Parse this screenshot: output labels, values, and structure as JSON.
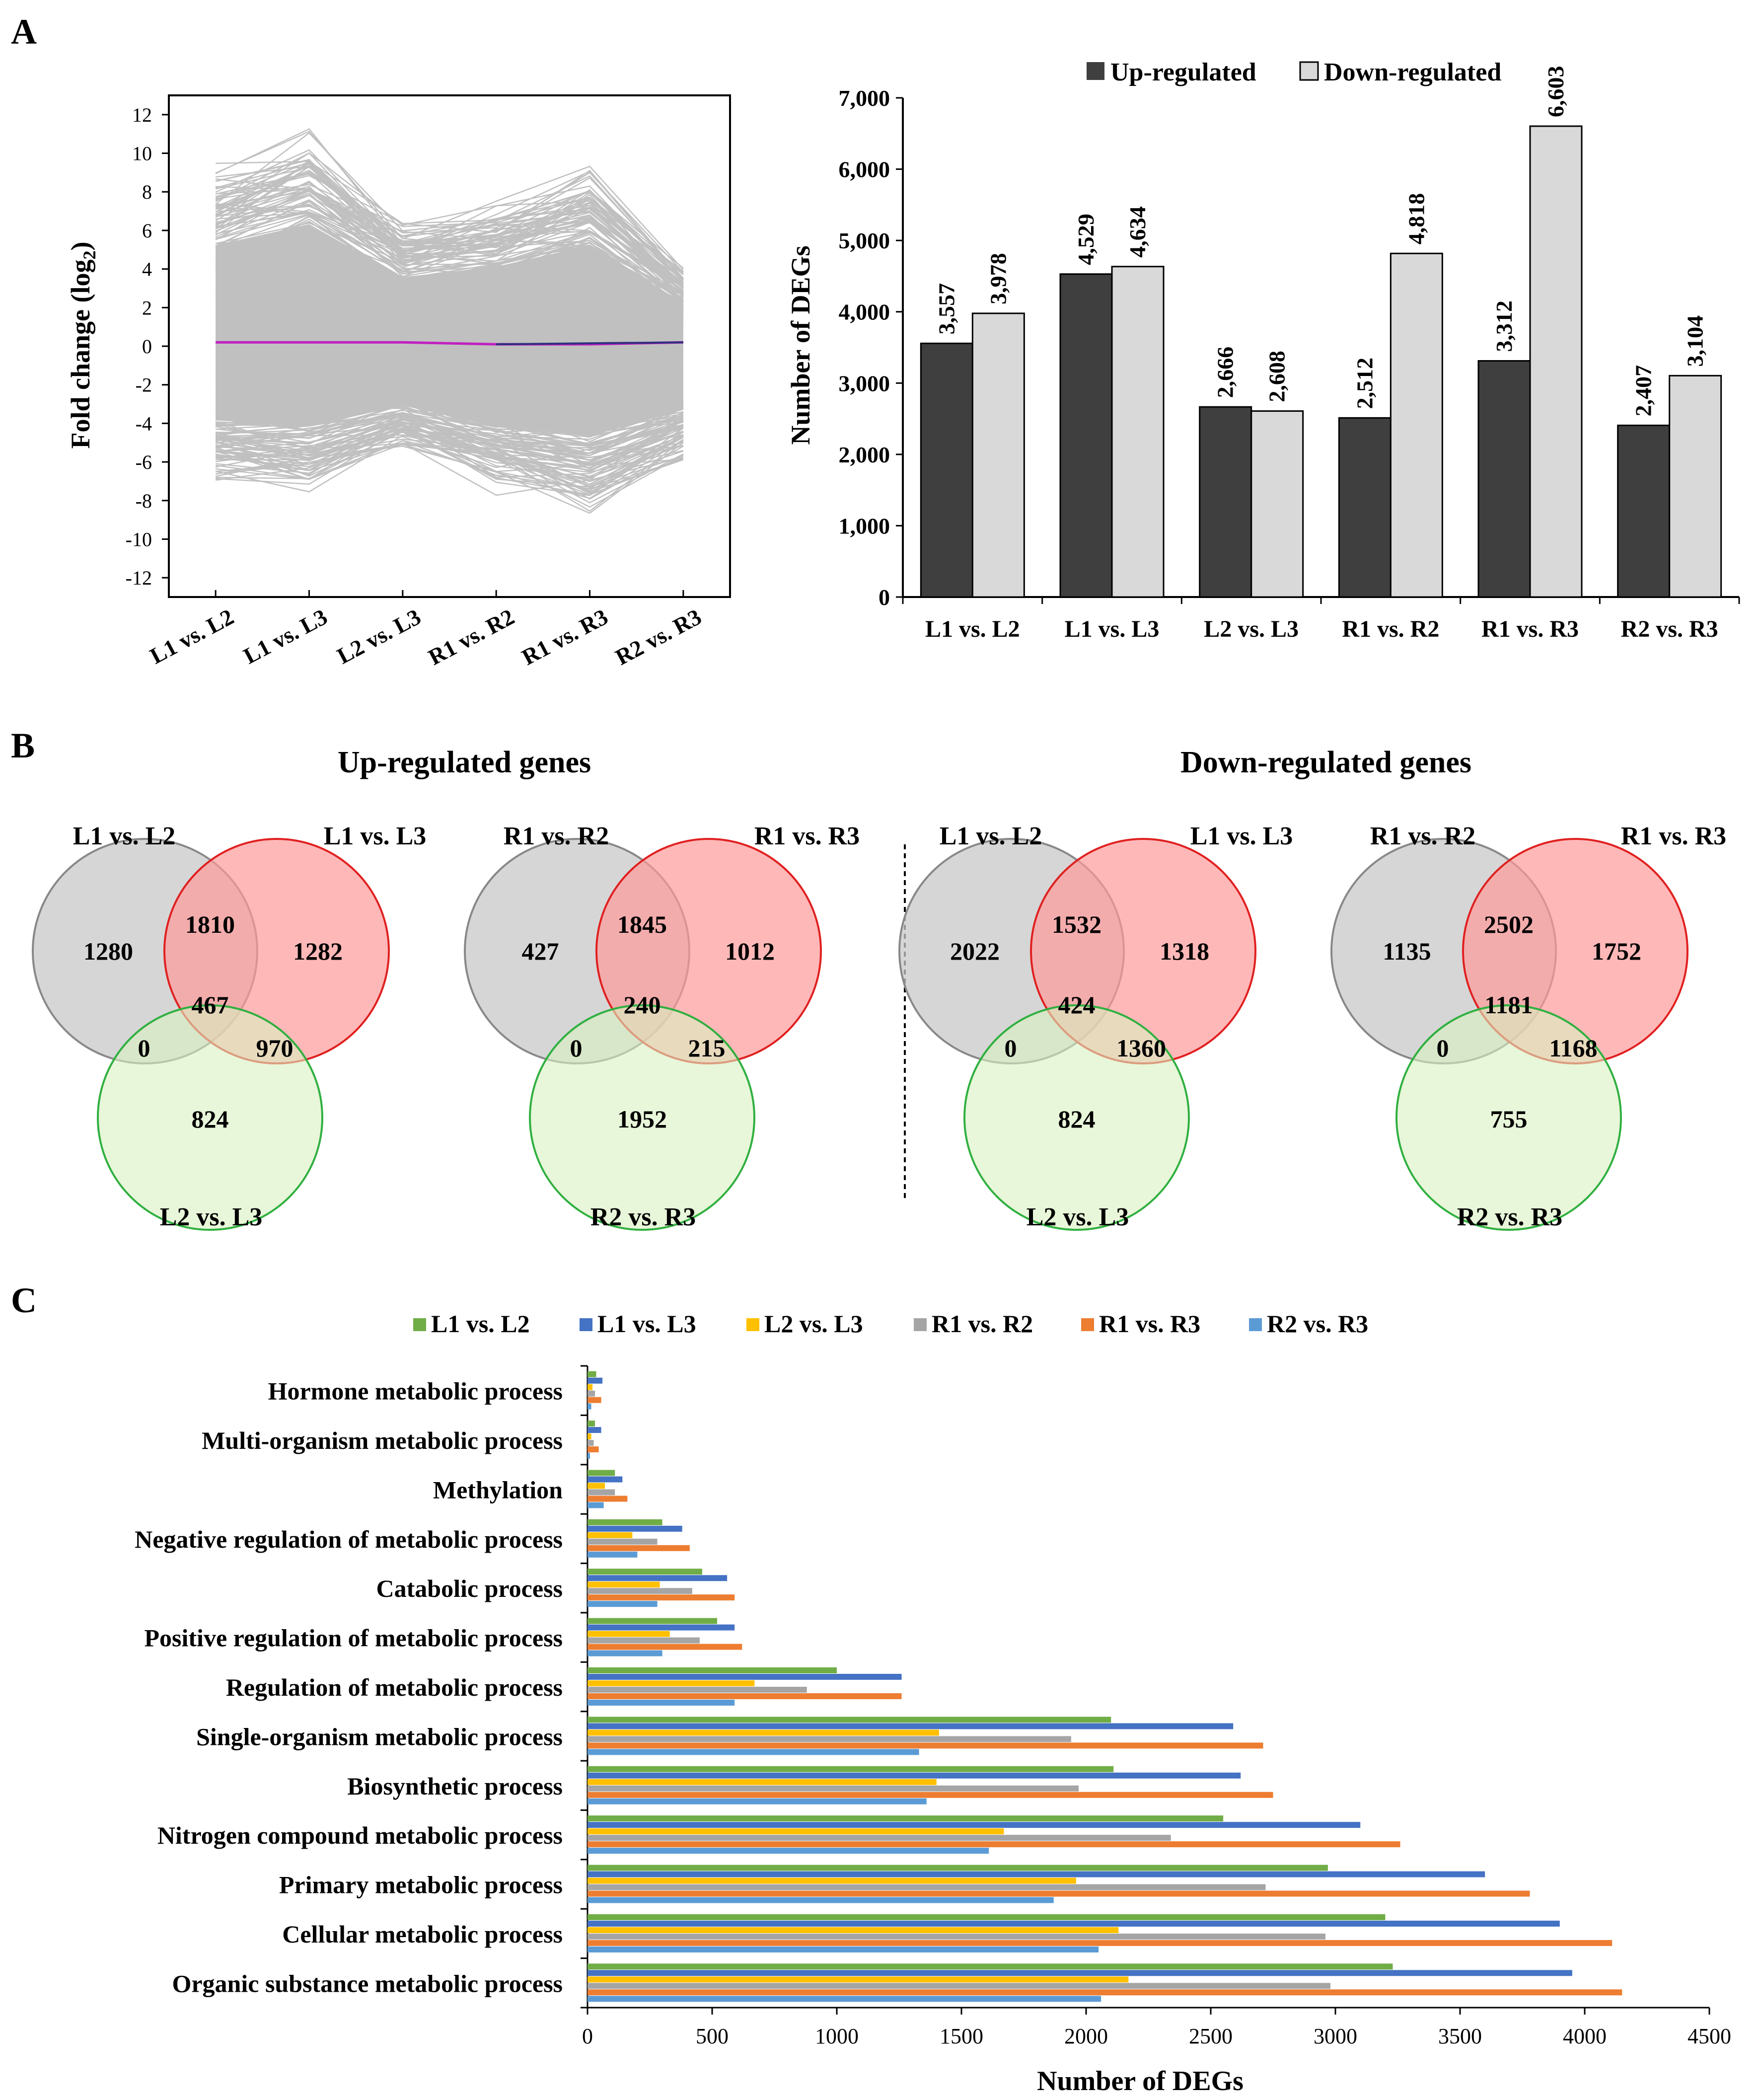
{
  "panels": {
    "a": "A",
    "b": "B",
    "c": "C"
  },
  "chart_data": [
    {
      "type": "line",
      "id": "fold-change",
      "title": "",
      "ylabel": "Fold change (log2)",
      "categories": [
        "L1 vs. L2",
        "L1 vs. L3",
        "L2 vs. L3",
        "R1 vs. R2",
        "R1 vs. R3",
        "R2 vs. R3"
      ],
      "ylim": [
        -13,
        13
      ],
      "yticks": [
        12,
        10,
        8,
        6,
        4,
        2,
        0,
        -2,
        -4,
        -6,
        -8,
        -10,
        -12
      ],
      "upper_envelope": [
        9.5,
        11.5,
        6.5,
        7.5,
        9.5,
        4.0
      ],
      "lower_envelope": [
        -7.0,
        -7.5,
        -5.5,
        -7.5,
        -8.5,
        -6.0
      ],
      "mean_line": [
        0.2,
        0.2,
        0.2,
        0.1,
        0.1,
        0.2
      ],
      "colors": {
        "lines": "#c0c0c0",
        "mean": "#c020c0",
        "mean2": "#303080"
      }
    },
    {
      "type": "bar",
      "id": "deg-counts",
      "title": "",
      "xlabel": "",
      "ylabel": "Number of DEGs",
      "categories": [
        "L1 vs. L2",
        "L1 vs. L3",
        "L2 vs. L3",
        "R1 vs. R2",
        "R1 vs. R3",
        "R2 vs. R3"
      ],
      "ylim": [
        0,
        7000
      ],
      "yticks": [
        "0",
        "1,000",
        "2,000",
        "3,000",
        "4,000",
        "5,000",
        "6,000",
        "7,000"
      ],
      "legend": "top",
      "series": [
        {
          "name": "Up-regulated",
          "color": "#3f3f3f",
          "values": [
            3557,
            4529,
            2666,
            2512,
            3312,
            2407
          ],
          "labels": [
            "3,557",
            "4,529",
            "2,666",
            "2,512",
            "3,312",
            "2,407"
          ]
        },
        {
          "name": "Down-regulated",
          "color": "#d9d9d9",
          "values": [
            3978,
            4634,
            2608,
            4818,
            6603,
            3104
          ],
          "labels": [
            "3,978",
            "4,634",
            "2,608",
            "4,818",
            "6,603",
            "3,104"
          ]
        }
      ]
    },
    {
      "type": "bar",
      "id": "go-categories",
      "orientation": "horizontal",
      "title": "",
      "xlabel": "Number of DEGs",
      "ylabel": "",
      "xlim": [
        0,
        4500
      ],
      "xticks": [
        0,
        500,
        1000,
        1500,
        2000,
        2500,
        3000,
        3500,
        4000,
        4500
      ],
      "legend": "top",
      "categories": [
        "Hormone metabolic process",
        "Multi-organism metabolic process",
        "Methylation",
        "Negative regulation of metabolic process",
        "Catabolic process",
        "Positive regulation of metabolic process",
        "Regulation of metabolic process",
        "Single-organism metabolic process",
        "Biosynthetic process",
        "Nitrogen compound metabolic process",
        "Primary metabolic process",
        "Cellular metabolic process",
        "Organic substance metabolic process"
      ],
      "series": [
        {
          "name": "L1 vs. L2",
          "color": "#70ad47",
          "values": [
            35,
            30,
            110,
            300,
            460,
            520,
            1000,
            2100,
            2110,
            2550,
            2970,
            3200,
            3230
          ]
        },
        {
          "name": "L1 vs. L3",
          "color": "#4472c4",
          "values": [
            60,
            55,
            140,
            380,
            560,
            590,
            1260,
            2590,
            2620,
            3100,
            3600,
            3900,
            3950
          ]
        },
        {
          "name": "L2 vs. L3",
          "color": "#ffc000",
          "values": [
            20,
            15,
            70,
            180,
            290,
            330,
            670,
            1410,
            1400,
            1670,
            1960,
            2130,
            2170
          ]
        },
        {
          "name": "R1 vs. R2",
          "color": "#a5a5a5",
          "values": [
            30,
            25,
            110,
            280,
            420,
            450,
            880,
            1940,
            1970,
            2340,
            2720,
            2960,
            2980
          ]
        },
        {
          "name": "R1 vs. R3",
          "color": "#ed7d31",
          "values": [
            55,
            45,
            160,
            410,
            590,
            620,
            1260,
            2710,
            2750,
            3260,
            3780,
            4110,
            4150
          ]
        },
        {
          "name": "R2 vs. R3",
          "color": "#5b9bd5",
          "values": [
            15,
            10,
            65,
            200,
            280,
            300,
            590,
            1330,
            1360,
            1610,
            1870,
            2050,
            2060
          ]
        }
      ]
    }
  ],
  "venn": {
    "headings": {
      "up": "Up-regulated genes",
      "down": "Down-regulated genes"
    },
    "colors": {
      "a": "#c8c8c8",
      "b": "#ff9a9a",
      "c": "#d8f0c0",
      "a_stroke": "#888888",
      "b_stroke": "#e02020",
      "c_stroke": "#30b040"
    },
    "diagrams": [
      {
        "set_a": "L1 vs. L2",
        "set_b": "L1 vs. L3",
        "set_c": "L2 vs. L3",
        "a_only": "1280",
        "ab": "1810",
        "b_only": "1282",
        "abc": "467",
        "ac": "0",
        "bc": "970",
        "c_only": "824"
      },
      {
        "set_a": "R1 vs. R2",
        "set_b": "R1 vs. R3",
        "set_c": "R2 vs. R3",
        "a_only": "427",
        "ab": "1845",
        "b_only": "1012",
        "abc": "240",
        "ac": "0",
        "bc": "215",
        "c_only": "1952"
      },
      {
        "set_a": "L1 vs. L2",
        "set_b": "L1 vs. L3",
        "set_c": "L2 vs. L3",
        "a_only": "2022",
        "ab": "1532",
        "b_only": "1318",
        "abc": "424",
        "ac": "0",
        "bc": "1360",
        "c_only": "824"
      },
      {
        "set_a": "R1 vs. R2",
        "set_b": "R1 vs. R3",
        "set_c": "R2 vs. R3",
        "a_only": "1135",
        "ab": "2502",
        "b_only": "1752",
        "abc": "1181",
        "ac": "0",
        "bc": "1168",
        "c_only": "755"
      }
    ]
  }
}
